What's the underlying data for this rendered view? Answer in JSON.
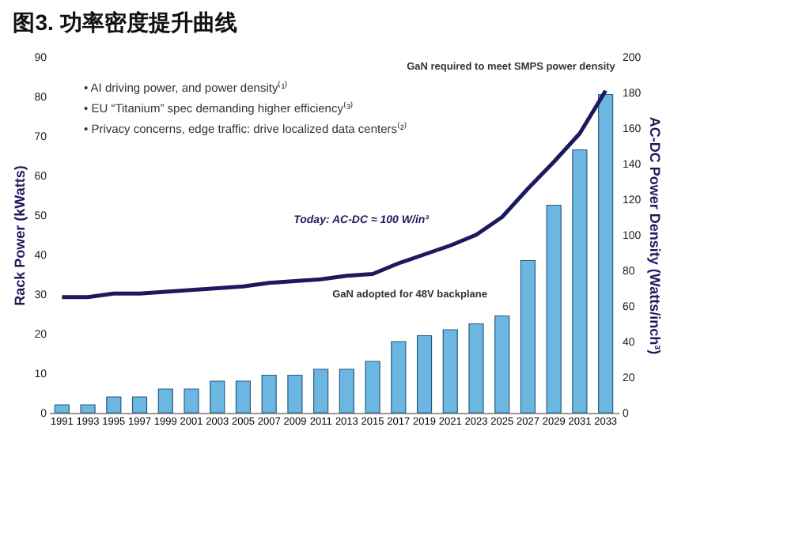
{
  "chart_data": {
    "type": "bar",
    "title": "图3. 功率密度提升曲线",
    "categories": [
      "1991",
      "1993",
      "1995",
      "1997",
      "1999",
      "2001",
      "2003",
      "2005",
      "2007",
      "2009",
      "2011",
      "2013",
      "2015",
      "2017",
      "2019",
      "2021",
      "2023",
      "2025",
      "2027",
      "2029",
      "2031",
      "2033"
    ],
    "series": [
      {
        "color": "#6cb6e2",
        "values": [
          2,
          2,
          4,
          4,
          6,
          6,
          8,
          8,
          9.5,
          9.5,
          11,
          11,
          13,
          18,
          19.5,
          21,
          22.5,
          24.5,
          38.5,
          52.5,
          66.5,
          80.5
        ]
      },
      {
        "type": "line",
        "axis": "y2",
        "color": "#1c1a5e",
        "values": [
          65,
          65,
          67,
          67,
          68,
          69,
          70,
          71,
          73,
          74,
          75,
          77,
          78,
          84,
          89,
          94,
          100,
          110,
          126,
          141,
          157,
          181
        ]
      }
    ],
    "ylabel": "Rack Power (kWatts)",
    "y2label": "AC-DC Power Density (Watts/inch³)",
    "ylim": [
      0,
      90
    ],
    "yticks": [
      0,
      10,
      20,
      30,
      40,
      50,
      60,
      70,
      80,
      90
    ],
    "y2lim": [
      0,
      200
    ],
    "y2ticks": [
      0,
      20,
      40,
      60,
      80,
      100,
      120,
      140,
      160,
      180,
      200
    ],
    "annotations": [
      "• AI driving power, and power density⁽¹⁾",
      "• EU “Titanium” spec demanding higher efficiency⁽³⁾",
      "• Privacy concerns, edge traffic: drive localized data centers⁽²⁾",
      "Today: AC-DC ≈ 100 W/in³",
      "GaN adopted for 48V backplane",
      "GaN required to meet SMPS power density"
    ],
    "grid": false
  }
}
